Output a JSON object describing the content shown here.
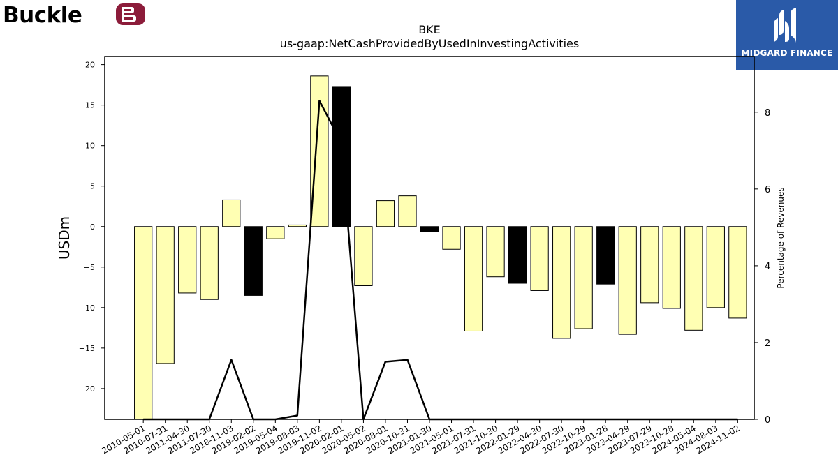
{
  "brand": {
    "left_logo_text": "Buckle",
    "right_logo_text": "MIDGARD FINANCE",
    "right_logo_bg": "#2a5aa8"
  },
  "chart_data": {
    "type": "bar",
    "title": "BKE",
    "subtitle": "us-gaap:NetCashProvidedByUsedInInvestingActivities",
    "ylabel": "USDm",
    "y2label": "Percentage of Revenues",
    "ylim": [
      -23.8,
      21.0
    ],
    "y2lim": [
      0,
      9.45
    ],
    "yticks": [
      -20,
      -15,
      -10,
      -5,
      0,
      5,
      10,
      15,
      20
    ],
    "y2ticks": [
      0,
      2,
      4,
      6,
      8
    ],
    "grid": false,
    "colors": {
      "positive_cash": "#ffffb3",
      "negative_cash": "#000000",
      "bar_edge": "#000000",
      "line": "#000000"
    },
    "categories": [
      "2010-05-01",
      "2010-07-31",
      "2011-04-30",
      "2011-07-30",
      "2018-11-03",
      "2019-02-02",
      "2019-05-04",
      "2019-08-03",
      "2019-11-02",
      "2020-02-01",
      "2020-05-02",
      "2020-08-01",
      "2020-10-31",
      "2021-01-30",
      "2021-05-01",
      "2021-07-31",
      "2021-10-30",
      "2022-01-29",
      "2022-04-30",
      "2022-07-30",
      "2022-10-29",
      "2023-01-28",
      "2023-04-29",
      "2023-07-29",
      "2023-10-28",
      "2024-05-04",
      "2024-08-03",
      "2024-11-02"
    ],
    "series": [
      {
        "type": "bar",
        "values": [
          -23.8,
          -16.9,
          -8.2,
          -9.0,
          3.3,
          -8.5,
          -1.5,
          0.2,
          18.6,
          17.3,
          -7.3,
          3.2,
          3.8,
          -0.6,
          -2.8,
          -12.9,
          -6.2,
          -7.0,
          -7.9,
          -13.8,
          -12.6,
          -7.1,
          -13.3,
          -9.4,
          -10.1,
          -12.8,
          -10.0,
          -11.3
        ],
        "fill": [
          "#ffffb3",
          "#ffffb3",
          "#ffffb3",
          "#ffffb3",
          "#ffffb3",
          "#000000",
          "#ffffb3",
          "#ffffb3",
          "#ffffb3",
          "#000000",
          "#ffffb3",
          "#ffffb3",
          "#ffffb3",
          "#000000",
          "#ffffb3",
          "#ffffb3",
          "#ffffb3",
          "#000000",
          "#ffffb3",
          "#ffffb3",
          "#ffffb3",
          "#000000",
          "#ffffb3",
          "#ffffb3",
          "#ffffb3",
          "#ffffb3",
          "#ffffb3",
          "#ffffb3"
        ]
      },
      {
        "type": "line",
        "axis": "right",
        "values": [
          0,
          0,
          0,
          0,
          1.55,
          0,
          0,
          0.1,
          8.3,
          7.2,
          0,
          1.5,
          1.55,
          0,
          0,
          0,
          0,
          0,
          0,
          0,
          0,
          0,
          0,
          0,
          0,
          0,
          0,
          0
        ]
      }
    ]
  }
}
